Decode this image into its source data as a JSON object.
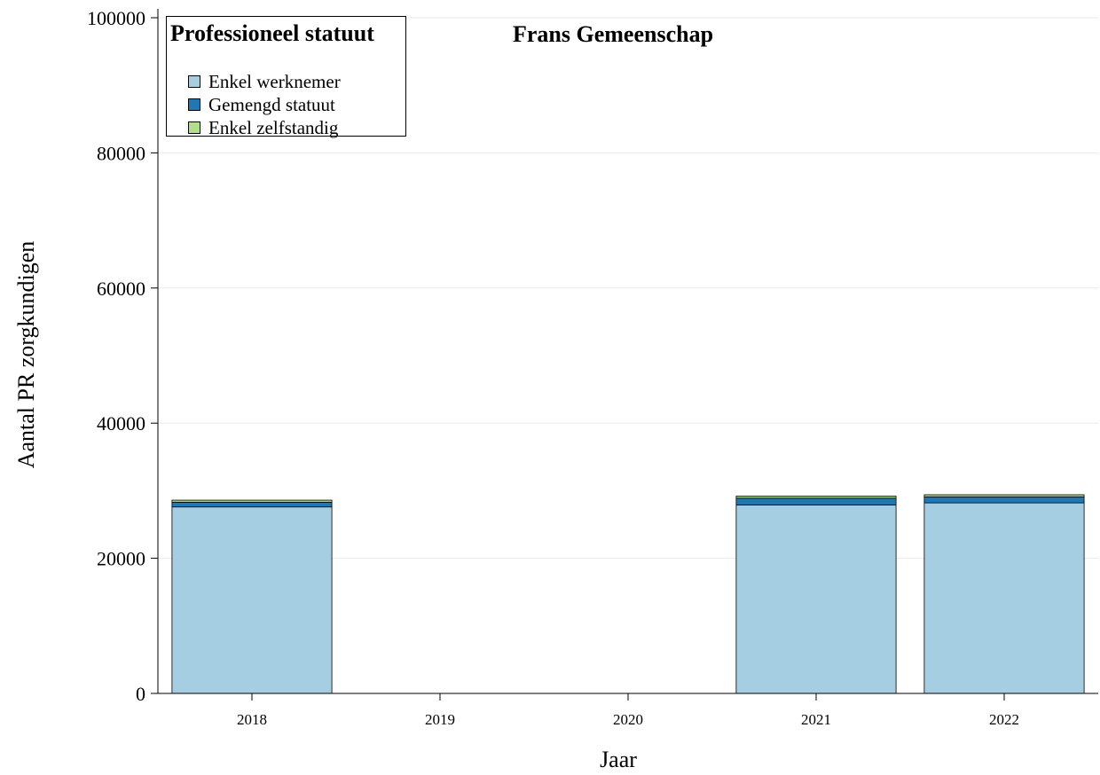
{
  "chart_data": {
    "type": "bar",
    "stacked": true,
    "title": "Frans Gemeenschap",
    "xlabel": "Jaar",
    "ylabel": "Aantal PR zorgkundigen",
    "categories": [
      "2018",
      "2019",
      "2020",
      "2021",
      "2022"
    ],
    "ylim": [
      0,
      100000
    ],
    "yticks": [
      "0",
      "20000",
      "40000",
      "60000",
      "80000",
      "100000"
    ],
    "grid": true,
    "legend": {
      "title": "Professioneel statuut",
      "placement": "top-left"
    },
    "series": [
      {
        "name": "Enkel werknemer",
        "color": "#a6cee3",
        "values": [
          27600,
          null,
          null,
          27900,
          28200
        ]
      },
      {
        "name": "Gemengd statuut",
        "color": "#1f78b4",
        "values": [
          700,
          null,
          null,
          1000,
          900
        ]
      },
      {
        "name": "Enkel zelfstandig",
        "color": "#b2df8a",
        "values": [
          300,
          null,
          null,
          300,
          300
        ]
      }
    ]
  }
}
